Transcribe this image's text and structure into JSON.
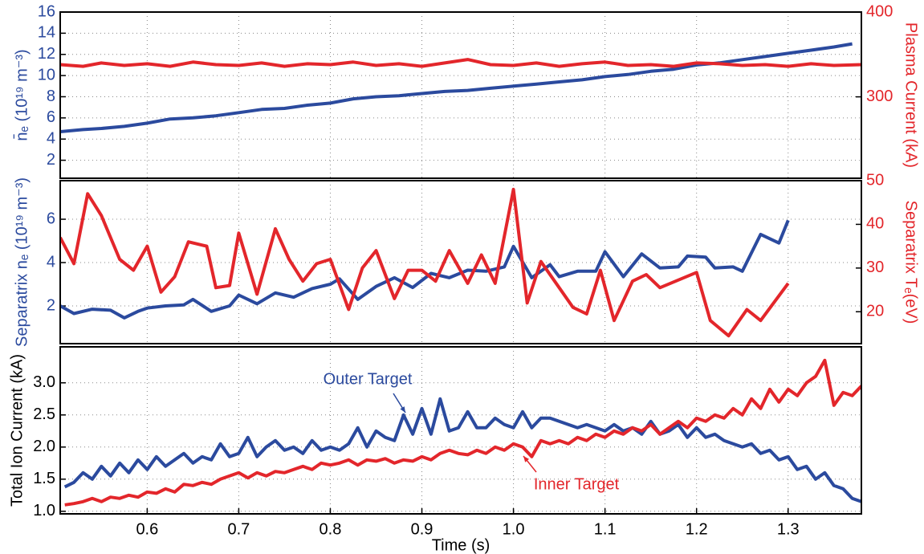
{
  "chart_data": [
    {
      "type": "line",
      "ylabel": "n̄ₑ (10¹⁹ m⁻³)",
      "y2label": "Plasma Current (kA)",
      "grid": true,
      "xlim": [
        0.505,
        1.38
      ],
      "ylim": [
        0.3,
        16
      ],
      "yticks": [
        2,
        4,
        6,
        8,
        10,
        12,
        14,
        16
      ],
      "y2lim": [
        204,
        400
      ],
      "y2ticks": [
        300,
        400
      ],
      "series": [
        {
          "color": "#2b4a9e",
          "axis": "y",
          "x": [
            0.505,
            0.53,
            0.55,
            0.575,
            0.6,
            0.625,
            0.65,
            0.675,
            0.7,
            0.725,
            0.75,
            0.775,
            0.8,
            0.825,
            0.85,
            0.875,
            0.9,
            0.925,
            0.95,
            0.975,
            1.0,
            1.025,
            1.05,
            1.075,
            1.1,
            1.125,
            1.15,
            1.175,
            1.2,
            1.225,
            1.25,
            1.275,
            1.3,
            1.325,
            1.35,
            1.37
          ],
          "values": [
            4.7,
            4.9,
            5.0,
            5.2,
            5.5,
            5.9,
            6.0,
            6.2,
            6.5,
            6.8,
            6.9,
            7.2,
            7.4,
            7.8,
            8.0,
            8.1,
            8.3,
            8.5,
            8.6,
            8.8,
            9.0,
            9.2,
            9.4,
            9.6,
            9.9,
            10.1,
            10.4,
            10.6,
            11.0,
            11.2,
            11.5,
            11.8,
            12.1,
            12.4,
            12.7,
            13.0
          ]
        },
        {
          "color": "#e3262b",
          "axis": "y2",
          "x": [
            0.505,
            0.53,
            0.55,
            0.575,
            0.6,
            0.625,
            0.65,
            0.675,
            0.7,
            0.725,
            0.75,
            0.775,
            0.8,
            0.825,
            0.85,
            0.875,
            0.9,
            0.925,
            0.95,
            0.975,
            1.0,
            1.025,
            1.05,
            1.075,
            1.1,
            1.125,
            1.15,
            1.175,
            1.2,
            1.225,
            1.25,
            1.275,
            1.3,
            1.325,
            1.35,
            1.38
          ],
          "values": [
            338,
            336,
            340,
            337,
            339,
            336,
            341,
            338,
            337,
            340,
            336,
            339,
            338,
            341,
            337,
            339,
            336,
            340,
            344,
            338,
            337,
            340,
            336,
            339,
            341,
            337,
            338,
            336,
            340,
            339,
            337,
            338,
            336,
            339,
            337,
            338
          ]
        }
      ]
    },
    {
      "type": "line",
      "ylabel": "Separatrix nₑ (10¹⁹ m⁻³)",
      "y2label": "Separatrix Tₑ(eV)",
      "grid": true,
      "xlim": [
        0.505,
        1.38
      ],
      "ylim": [
        0.26,
        7.78
      ],
      "yticks": [
        2,
        4,
        6
      ],
      "y2lim": [
        12.7,
        50
      ],
      "y2ticks": [
        20,
        30,
        40,
        50
      ],
      "series": [
        {
          "color": "#2b4a9e",
          "axis": "y",
          "x": [
            0.505,
            0.52,
            0.54,
            0.56,
            0.575,
            0.59,
            0.6,
            0.62,
            0.64,
            0.65,
            0.67,
            0.69,
            0.7,
            0.72,
            0.74,
            0.76,
            0.78,
            0.8,
            0.81,
            0.83,
            0.85,
            0.87,
            0.89,
            0.91,
            0.93,
            0.95,
            0.97,
            0.99,
            1.0,
            1.02,
            1.04,
            1.05,
            1.07,
            1.09,
            1.1,
            1.12,
            1.14,
            1.16,
            1.18,
            1.19,
            1.21,
            1.22,
            1.24,
            1.25,
            1.27,
            1.29,
            1.3
          ],
          "values": [
            2.0,
            1.65,
            1.85,
            1.8,
            1.45,
            1.75,
            1.9,
            2.0,
            2.05,
            2.3,
            1.75,
            2.0,
            2.5,
            2.1,
            2.6,
            2.4,
            2.8,
            3.0,
            3.25,
            2.3,
            2.9,
            3.3,
            2.85,
            3.5,
            3.3,
            3.65,
            3.6,
            3.8,
            4.75,
            3.3,
            3.9,
            3.35,
            3.6,
            3.6,
            4.5,
            3.35,
            4.4,
            3.75,
            3.8,
            4.3,
            4.25,
            3.75,
            3.8,
            3.6,
            5.3,
            4.9,
            5.95
          ]
        },
        {
          "color": "#e3262b",
          "axis": "y2",
          "x": [
            0.505,
            0.52,
            0.535,
            0.55,
            0.57,
            0.585,
            0.6,
            0.615,
            0.63,
            0.645,
            0.665,
            0.675,
            0.69,
            0.7,
            0.72,
            0.74,
            0.755,
            0.77,
            0.785,
            0.8,
            0.82,
            0.835,
            0.85,
            0.87,
            0.885,
            0.9,
            0.915,
            0.93,
            0.95,
            0.965,
            0.98,
            1.0,
            1.015,
            1.03,
            1.045,
            1.065,
            1.08,
            1.095,
            1.11,
            1.13,
            1.145,
            1.16,
            1.2,
            1.215,
            1.235,
            1.255,
            1.27,
            1.3
          ],
          "values": [
            37,
            31,
            47,
            42,
            32,
            29.5,
            35,
            24.5,
            28,
            36,
            35,
            25.5,
            26,
            38,
            24,
            39,
            32,
            27,
            31,
            32,
            20.5,
            30,
            34,
            23,
            29.5,
            29.5,
            27,
            34,
            26.5,
            33,
            26.5,
            48,
            22,
            31.5,
            27,
            21,
            19.5,
            29.5,
            18,
            27,
            28.5,
            25.5,
            29,
            18,
            14.5,
            20.5,
            18,
            26.5
          ]
        }
      ]
    },
    {
      "type": "line",
      "ylabel": "Total Ion Current (kA)",
      "xlabel": "Time (s)",
      "grid": true,
      "xlim": [
        0.505,
        1.38
      ],
      "xticks": [
        0.6,
        0.7,
        0.8,
        0.9,
        {
          "value": 1,
          "label": "1.0"
        },
        1.1,
        1.2,
        1.3
      ],
      "ylim": [
        0.96,
        3.56
      ],
      "yticks": [
        {
          "value": 1,
          "label": "1.0"
        },
        1.5,
        {
          "value": 2,
          "label": "2.0"
        },
        2.5,
        {
          "value": 3,
          "label": "3.0"
        }
      ],
      "annotations": [
        "Outer Target",
        "Inner Target"
      ],
      "x": [
        0.51,
        0.52,
        0.53,
        0.54,
        0.55,
        0.56,
        0.57,
        0.58,
        0.59,
        0.6,
        0.61,
        0.62,
        0.63,
        0.64,
        0.65,
        0.66,
        0.67,
        0.68,
        0.69,
        0.7,
        0.71,
        0.72,
        0.73,
        0.74,
        0.75,
        0.76,
        0.77,
        0.78,
        0.79,
        0.8,
        0.81,
        0.82,
        0.83,
        0.84,
        0.85,
        0.86,
        0.87,
        0.88,
        0.89,
        0.9,
        0.91,
        0.92,
        0.93,
        0.94,
        0.95,
        0.96,
        0.97,
        0.98,
        0.99,
        1.0,
        1.01,
        1.02,
        1.03,
        1.04,
        1.05,
        1.06,
        1.07,
        1.08,
        1.09,
        1.1,
        1.11,
        1.12,
        1.13,
        1.14,
        1.15,
        1.16,
        1.17,
        1.18,
        1.19,
        1.2,
        1.21,
        1.22,
        1.23,
        1.24,
        1.25,
        1.26,
        1.27,
        1.28,
        1.29,
        1.3,
        1.31,
        1.32,
        1.33,
        1.34,
        1.35,
        1.36,
        1.37,
        1.38
      ],
      "series": [
        {
          "color": "#2b4a9e",
          "axis": "y",
          "values": [
            1.38,
            1.45,
            1.6,
            1.5,
            1.7,
            1.55,
            1.75,
            1.6,
            1.8,
            1.65,
            1.85,
            1.7,
            1.8,
            1.9,
            1.75,
            1.85,
            1.8,
            2.05,
            1.85,
            1.9,
            2.15,
            1.85,
            2.0,
            2.1,
            1.95,
            2.0,
            1.9,
            2.1,
            1.95,
            2.0,
            1.95,
            2.05,
            2.3,
            2.0,
            2.25,
            2.15,
            2.1,
            2.5,
            2.2,
            2.6,
            2.2,
            2.75,
            2.25,
            2.3,
            2.55,
            2.3,
            2.3,
            2.45,
            2.35,
            2.3,
            2.55,
            2.3,
            2.45,
            2.45,
            2.4,
            2.35,
            2.3,
            2.35,
            2.3,
            2.25,
            2.35,
            2.25,
            2.3,
            2.2,
            2.4,
            2.2,
            2.25,
            2.35,
            2.15,
            2.3,
            2.15,
            2.2,
            2.1,
            2.05,
            2.0,
            2.05,
            1.9,
            1.95,
            1.8,
            1.85,
            1.65,
            1.7,
            1.5,
            1.6,
            1.4,
            1.35,
            1.2,
            1.15
          ]
        },
        {
          "color": "#e3262b",
          "axis": "y",
          "values": [
            1.1,
            1.12,
            1.15,
            1.2,
            1.15,
            1.22,
            1.2,
            1.25,
            1.22,
            1.3,
            1.28,
            1.35,
            1.3,
            1.42,
            1.4,
            1.45,
            1.42,
            1.5,
            1.55,
            1.6,
            1.52,
            1.6,
            1.55,
            1.62,
            1.6,
            1.65,
            1.7,
            1.65,
            1.75,
            1.72,
            1.75,
            1.8,
            1.72,
            1.8,
            1.78,
            1.82,
            1.75,
            1.8,
            1.78,
            1.85,
            1.8,
            1.9,
            1.95,
            1.9,
            1.88,
            1.95,
            1.9,
            2.0,
            1.95,
            2.05,
            2.0,
            1.85,
            2.1,
            2.05,
            2.1,
            2.05,
            2.15,
            2.1,
            2.2,
            2.15,
            2.25,
            2.2,
            2.3,
            2.25,
            2.35,
            2.2,
            2.3,
            2.4,
            2.3,
            2.45,
            2.4,
            2.5,
            2.45,
            2.6,
            2.5,
            2.75,
            2.6,
            2.9,
            2.7,
            2.9,
            2.8,
            3.0,
            3.1,
            3.35,
            2.65,
            2.85,
            2.8,
            2.95
          ]
        }
      ]
    }
  ]
}
